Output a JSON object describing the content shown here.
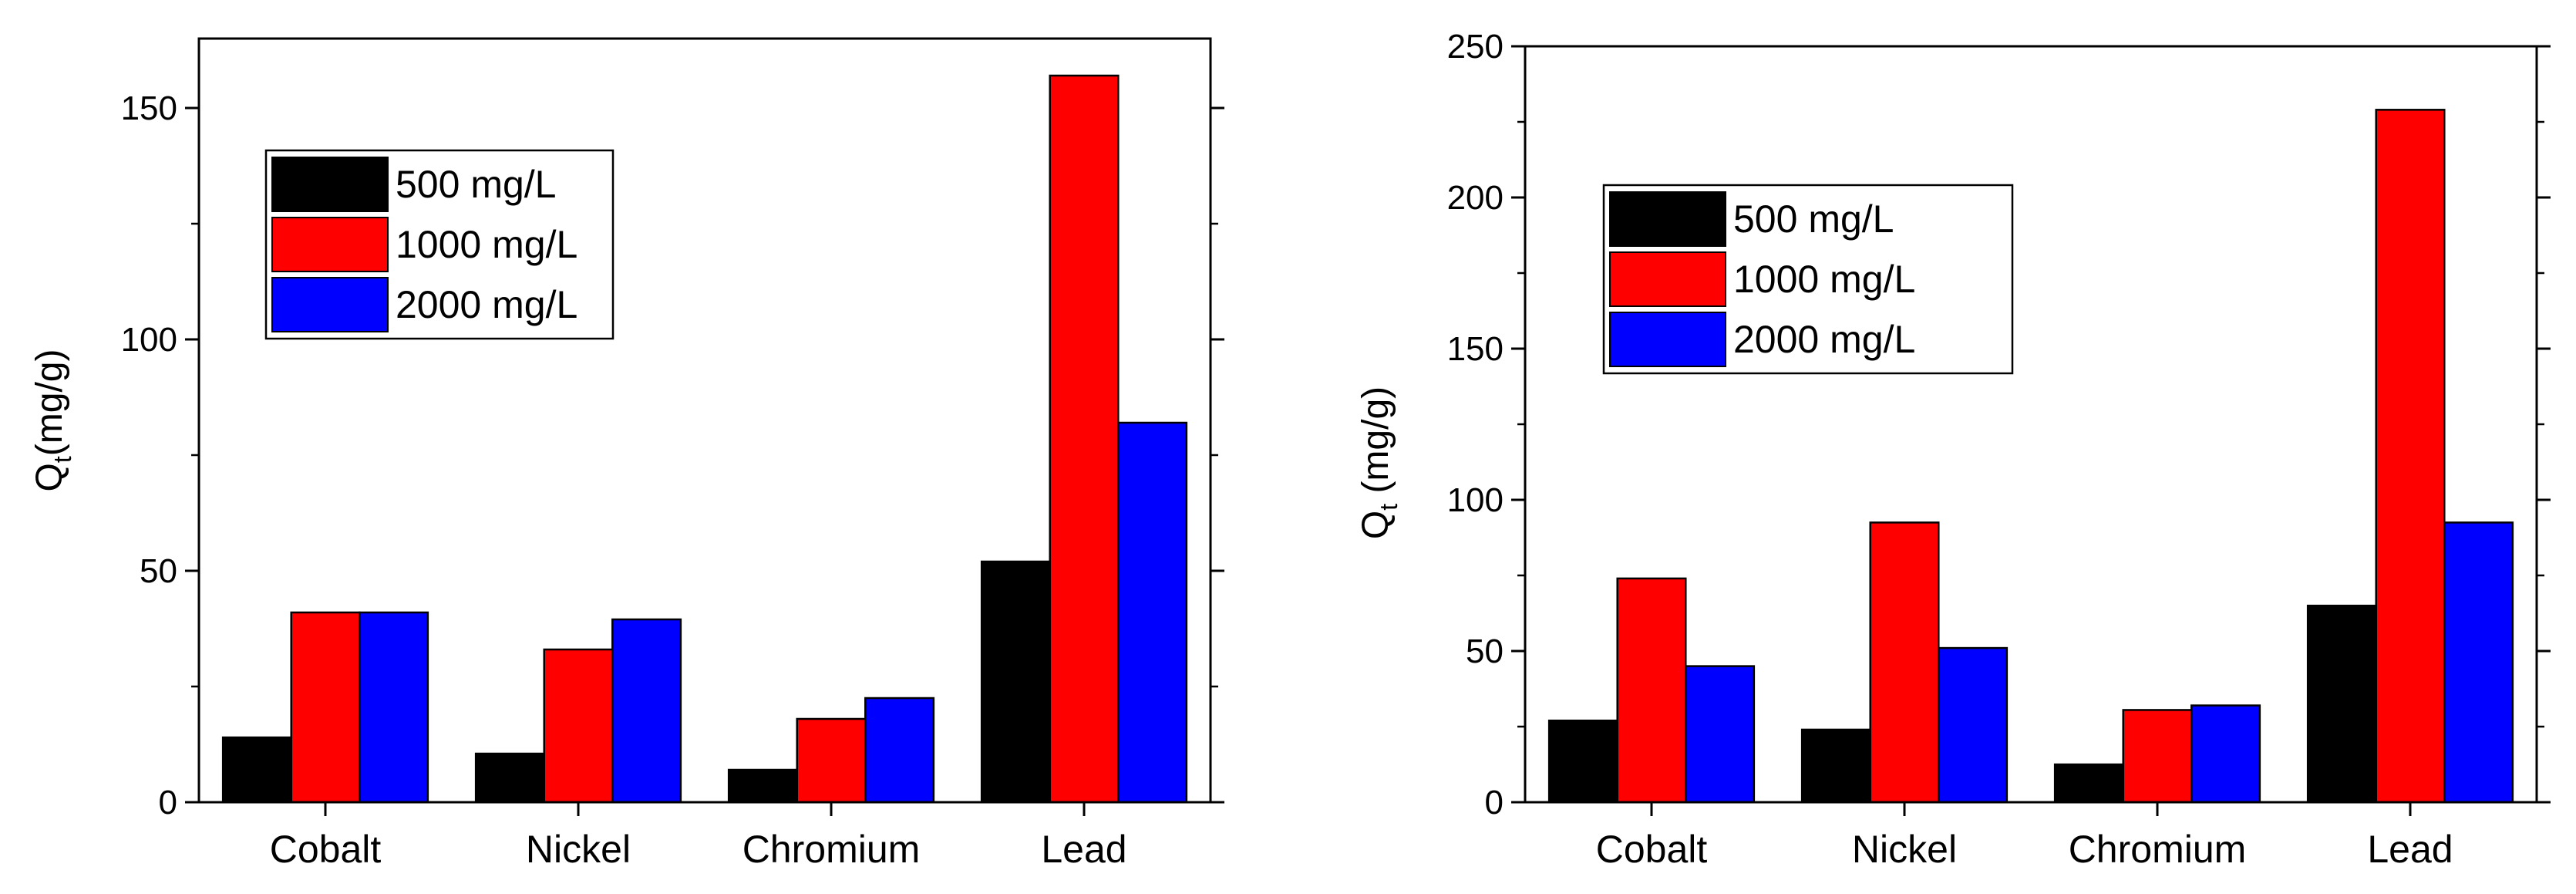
{
  "chart_data": [
    {
      "type": "bar",
      "title": "",
      "xlabel": "",
      "ylabel_main": "Q",
      "ylabel_sub": "t",
      "ylabel_rest": "(mg/g)",
      "categories": [
        "Cobalt",
        "Nickel",
        "Chromium",
        "Lead"
      ],
      "ylim": [
        0,
        165
      ],
      "yticks": [
        0,
        50,
        100,
        150
      ],
      "yticks_minor": [
        25,
        75,
        125
      ],
      "legend_position": "upper-left",
      "series": [
        {
          "name": "500  mg/L",
          "color": "#000000",
          "values": [
            14,
            10.5,
            7,
            52
          ]
        },
        {
          "name": "1000 mg/L",
          "color": "#ff0000",
          "values": [
            41,
            33,
            18,
            157
          ]
        },
        {
          "name": "2000 mg/L",
          "color": "#0000ff",
          "values": [
            41,
            39.5,
            22.5,
            82
          ]
        }
      ]
    },
    {
      "type": "bar",
      "title": "",
      "xlabel": "",
      "ylabel_main": "Q",
      "ylabel_sub": "t",
      "ylabel_rest": " (mg/g)",
      "categories": [
        "Cobalt",
        "Nickel",
        "Chromium",
        "Lead"
      ],
      "ylim": [
        0,
        250
      ],
      "yticks": [
        0,
        50,
        100,
        150,
        200,
        250
      ],
      "yticks_minor": [
        25,
        75,
        125,
        175,
        225
      ],
      "legend_position": "upper-left",
      "series": [
        {
          "name": "500  mg/L",
          "color": "#000000",
          "values": [
            27,
            24,
            12.5,
            65
          ]
        },
        {
          "name": "1000  mg/L",
          "color": "#ff0000",
          "values": [
            74,
            92.5,
            30.5,
            229
          ]
        },
        {
          "name": "2000  mg/L",
          "color": "#0000ff",
          "values": [
            45,
            51,
            32,
            92.5
          ]
        }
      ]
    }
  ]
}
